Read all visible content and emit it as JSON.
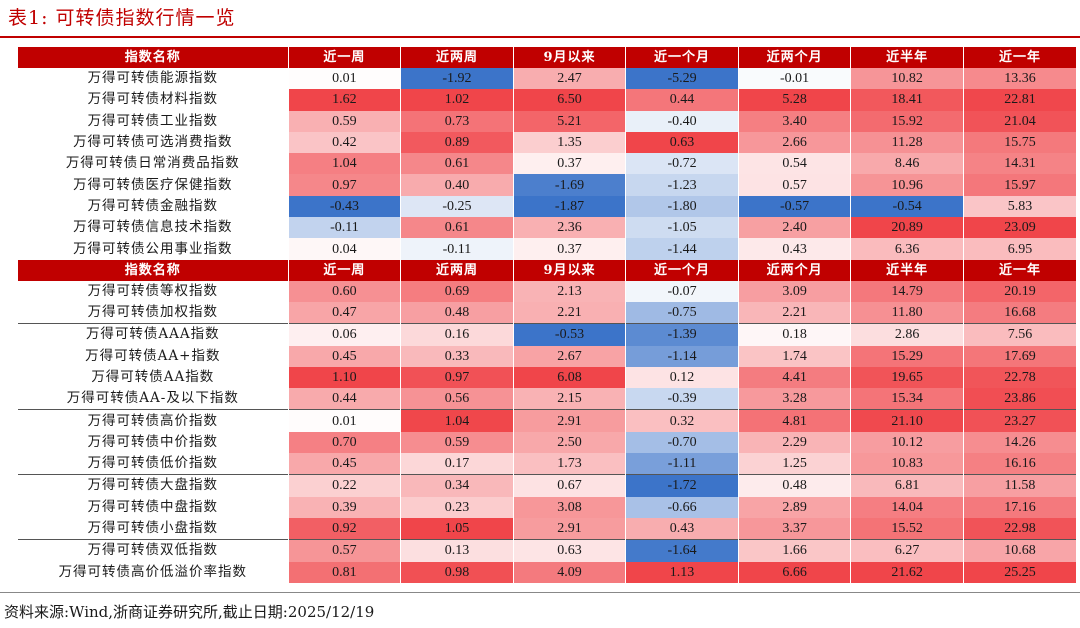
{
  "title": "表1:   可转债指数行情一览",
  "source": "资料来源:Wind,浙商证券研究所,截止日期:2025/12/19",
  "colors": {
    "accent": "#c00000",
    "pos": "#f0454a",
    "neg": "#3c74c9"
  },
  "headers": [
    "指数名称",
    "近一周",
    "近两周",
    "9月以来",
    "近一个月",
    "近两个月",
    "近半年",
    "近一年"
  ],
  "section1": [
    {
      "name": "万得可转债能源指数",
      "values": [
        "0.01",
        "-1.92",
        "2.47",
        "-5.29",
        "-0.01",
        "10.82",
        "13.36"
      ]
    },
    {
      "name": "万得可转债材料指数",
      "values": [
        "1.62",
        "1.02",
        "6.50",
        "0.44",
        "5.28",
        "18.41",
        "22.81"
      ]
    },
    {
      "name": "万得可转债工业指数",
      "values": [
        "0.59",
        "0.73",
        "5.21",
        "-0.40",
        "3.40",
        "15.92",
        "21.04"
      ]
    },
    {
      "name": "万得可转债可选消费指数",
      "values": [
        "0.42",
        "0.89",
        "1.35",
        "0.63",
        "2.66",
        "11.28",
        "15.75"
      ]
    },
    {
      "name": "万得可转债日常消费品指数",
      "values": [
        "1.04",
        "0.61",
        "0.37",
        "-0.72",
        "0.54",
        "8.46",
        "14.31"
      ]
    },
    {
      "name": "万得可转债医疗保健指数",
      "values": [
        "0.97",
        "0.40",
        "-1.69",
        "-1.23",
        "0.57",
        "10.96",
        "15.97"
      ]
    },
    {
      "name": "万得可转债金融指数",
      "values": [
        "-0.43",
        "-0.25",
        "-1.87",
        "-1.80",
        "-0.57",
        "-0.54",
        "5.83"
      ]
    },
    {
      "name": "万得可转债信息技术指数",
      "values": [
        "-0.11",
        "0.61",
        "2.36",
        "-1.05",
        "2.40",
        "20.89",
        "23.09"
      ]
    },
    {
      "name": "万得可转债公用事业指数",
      "values": [
        "0.04",
        "-0.11",
        "0.37",
        "-1.44",
        "0.43",
        "6.36",
        "6.95"
      ]
    }
  ],
  "section2": [
    {
      "name": "万得可转债等权指数",
      "values": [
        "0.60",
        "0.69",
        "2.13",
        "-0.07",
        "3.09",
        "14.79",
        "20.19"
      ],
      "group": 0
    },
    {
      "name": "万得可转债加权指数",
      "values": [
        "0.47",
        "0.48",
        "2.21",
        "-0.75",
        "2.21",
        "11.80",
        "16.68"
      ],
      "group": 0
    },
    {
      "name": "万得可转债AAA指数",
      "values": [
        "0.06",
        "0.16",
        "-0.53",
        "-1.39",
        "0.18",
        "2.86",
        "7.56"
      ],
      "group": 1
    },
    {
      "name": "万得可转债AA+指数",
      "values": [
        "0.45",
        "0.33",
        "2.67",
        "-1.14",
        "1.74",
        "15.29",
        "17.69"
      ],
      "group": 1
    },
    {
      "name": "万得可转债AA指数",
      "values": [
        "1.10",
        "0.97",
        "6.08",
        "0.12",
        "4.41",
        "19.65",
        "22.78"
      ],
      "group": 1
    },
    {
      "name": "万得可转债AA-及以下指数",
      "values": [
        "0.44",
        "0.56",
        "2.15",
        "-0.39",
        "3.28",
        "15.34",
        "23.86"
      ],
      "group": 1
    },
    {
      "name": "万得可转债高价指数",
      "values": [
        "0.01",
        "1.04",
        "2.91",
        "0.32",
        "4.81",
        "21.10",
        "23.27"
      ],
      "group": 2
    },
    {
      "name": "万得可转债中价指数",
      "values": [
        "0.70",
        "0.59",
        "2.50",
        "-0.70",
        "2.29",
        "10.12",
        "14.26"
      ],
      "group": 2
    },
    {
      "name": "万得可转债低价指数",
      "values": [
        "0.45",
        "0.17",
        "1.73",
        "-1.11",
        "1.25",
        "10.83",
        "16.16"
      ],
      "group": 2
    },
    {
      "name": "万得可转债大盘指数",
      "values": [
        "0.22",
        "0.34",
        "0.67",
        "-1.72",
        "0.48",
        "6.81",
        "11.58"
      ],
      "group": 3
    },
    {
      "name": "万得可转债中盘指数",
      "values": [
        "0.39",
        "0.23",
        "3.08",
        "-0.66",
        "2.89",
        "14.04",
        "17.16"
      ],
      "group": 3
    },
    {
      "name": "万得可转债小盘指数",
      "values": [
        "0.92",
        "1.05",
        "2.91",
        "0.43",
        "3.37",
        "15.52",
        "22.98"
      ],
      "group": 3
    },
    {
      "name": "万得可转债双低指数",
      "values": [
        "0.57",
        "0.13",
        "0.63",
        "-1.64",
        "1.66",
        "6.27",
        "10.68"
      ],
      "group": 4
    },
    {
      "name": "万得可转债高价低溢价率指数",
      "values": [
        "0.81",
        "0.98",
        "4.09",
        "1.13",
        "6.66",
        "21.62",
        "25.25"
      ],
      "group": 4
    }
  ]
}
